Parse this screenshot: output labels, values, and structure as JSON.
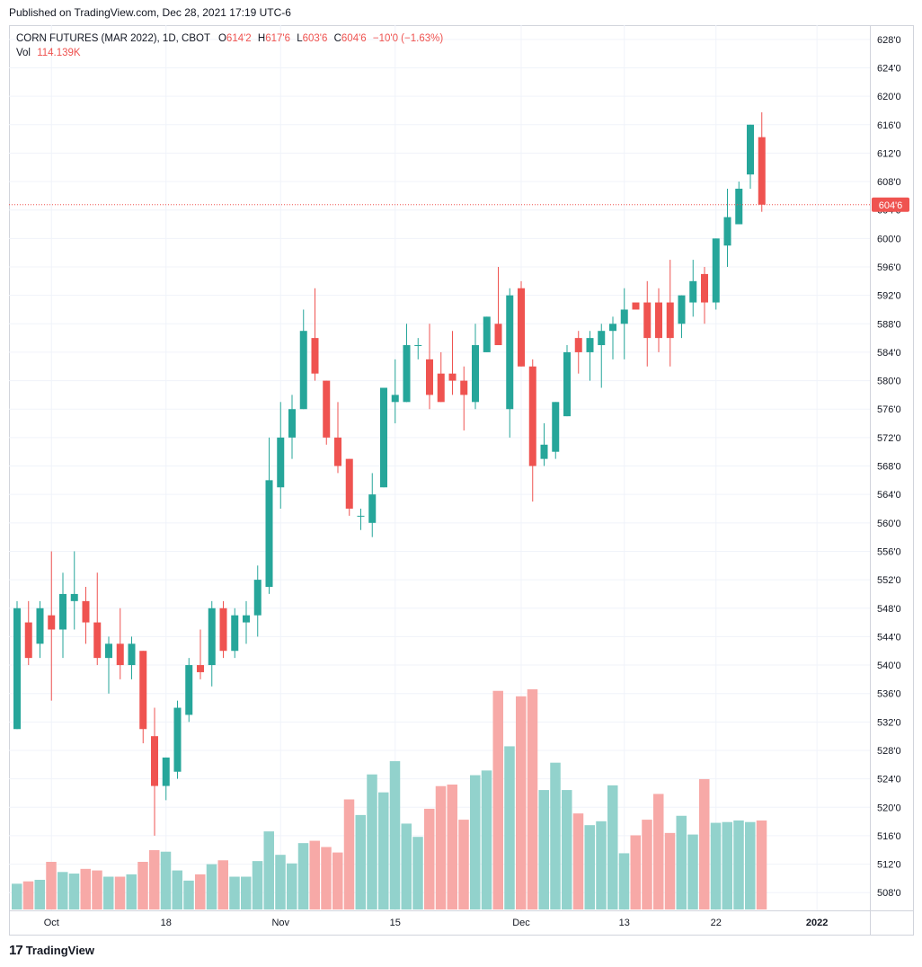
{
  "header": {
    "published": "Published on TradingView.com, Dec 28, 2021 17:19 UTC-6"
  },
  "legend": {
    "symbol": "CORN FUTURES (MAR 2022), 1D, CBOT",
    "o_label": "O",
    "o_value": "614'2",
    "h_label": "H",
    "h_value": "617'6",
    "l_label": "L",
    "l_value": "603'6",
    "c_label": "C",
    "c_value": "604'6",
    "change": "−10'0 (−1.63%)",
    "vol_label": "Vol",
    "vol_value": "114.139K"
  },
  "price_axis": {
    "ticks": [
      "628'0",
      "624'0",
      "620'0",
      "616'0",
      "612'0",
      "608'0",
      "604'0",
      "600'0",
      "596'0",
      "592'0",
      "588'0",
      "584'0",
      "580'0",
      "576'0",
      "572'0",
      "568'0",
      "564'0",
      "560'0",
      "556'0",
      "552'0",
      "548'0",
      "544'0",
      "540'0",
      "536'0",
      "532'0",
      "528'0",
      "524'0",
      "520'0",
      "516'0",
      "512'0",
      "508'0"
    ],
    "last_price_label": "604'6"
  },
  "time_axis": {
    "labels": [
      "Oct",
      "18",
      "Nov",
      "15",
      "Dec",
      "13",
      "22",
      "2022"
    ]
  },
  "footer": {
    "brand": "TradingView",
    "logo_glyph": "17"
  },
  "colors": {
    "up": "#26a69a",
    "down": "#ef5350",
    "up_volume": "#92d2cc",
    "down_volume": "#f7a9a7",
    "grid": "#f0f3fa",
    "text": "#131722"
  },
  "chart_data": {
    "type": "candlestick",
    "title": "CORN FUTURES (MAR 2022), 1D, CBOT",
    "price_range": [
      505.5,
      630
    ],
    "grid": true,
    "volume_unit": "relative",
    "candles": [
      {
        "d": "2021-09-29",
        "o": 531,
        "h": 549,
        "l": 531,
        "c": 548,
        "v": 33
      },
      {
        "d": "2021-09-30",
        "o": 546,
        "h": 549,
        "l": 540,
        "c": 541,
        "v": 36
      },
      {
        "d": "2021-10-01",
        "o": 543,
        "h": 549,
        "l": 541,
        "c": 548,
        "v": 38
      },
      {
        "d": "2021-10-04",
        "o": 547,
        "h": 556,
        "l": 535,
        "c": 545,
        "v": 61
      },
      {
        "d": "2021-10-05",
        "o": 545,
        "h": 553,
        "l": 541,
        "c": 550,
        "v": 48
      },
      {
        "d": "2021-10-06",
        "o": 549,
        "h": 556,
        "l": 545,
        "c": 550,
        "v": 46
      },
      {
        "d": "2021-10-07",
        "o": 549,
        "h": 551,
        "l": 543,
        "c": 546,
        "v": 52
      },
      {
        "d": "2021-10-08",
        "o": 546,
        "h": 553,
        "l": 540,
        "c": 541,
        "v": 50
      },
      {
        "d": "2021-10-11",
        "o": 541,
        "h": 544,
        "l": 536,
        "c": 543,
        "v": 42
      },
      {
        "d": "2021-10-12",
        "o": 543,
        "h": 548,
        "l": 538,
        "c": 540,
        "v": 42
      },
      {
        "d": "2021-10-13",
        "o": 540,
        "h": 544,
        "l": 538,
        "c": 543,
        "v": 45
      },
      {
        "d": "2021-10-14",
        "o": 542,
        "h": 542,
        "l": 529,
        "c": 531,
        "v": 61
      },
      {
        "d": "2021-10-15",
        "o": 530,
        "h": 534,
        "l": 516,
        "c": 523,
        "v": 76
      },
      {
        "d": "2021-10-18",
        "o": 523,
        "h": 527,
        "l": 521,
        "c": 527,
        "v": 74
      },
      {
        "d": "2021-10-19",
        "o": 525,
        "h": 535,
        "l": 524,
        "c": 534,
        "v": 50
      },
      {
        "d": "2021-10-20",
        "o": 533,
        "h": 541,
        "l": 532,
        "c": 540,
        "v": 37
      },
      {
        "d": "2021-10-21",
        "o": 540,
        "h": 545,
        "l": 538,
        "c": 539,
        "v": 45
      },
      {
        "d": "2021-10-22",
        "o": 540,
        "h": 549,
        "l": 537,
        "c": 548,
        "v": 58
      },
      {
        "d": "2021-10-25",
        "o": 548,
        "h": 549,
        "l": 541,
        "c": 542,
        "v": 63
      },
      {
        "d": "2021-10-26",
        "o": 542,
        "h": 548,
        "l": 541,
        "c": 547,
        "v": 42
      },
      {
        "d": "2021-10-27",
        "o": 546,
        "h": 549,
        "l": 543,
        "c": 547,
        "v": 42
      },
      {
        "d": "2021-10-28",
        "o": 547,
        "h": 554,
        "l": 544,
        "c": 552,
        "v": 62
      },
      {
        "d": "2021-10-29",
        "o": 551,
        "h": 572,
        "l": 550,
        "c": 566,
        "v": 100
      },
      {
        "d": "2021-11-01",
        "o": 565,
        "h": 577,
        "l": 562,
        "c": 572,
        "v": 70
      },
      {
        "d": "2021-11-02",
        "o": 572,
        "h": 578,
        "l": 569,
        "c": 576,
        "v": 59
      },
      {
        "d": "2021-11-03",
        "o": 576,
        "h": 590,
        "l": 576,
        "c": 587,
        "v": 85
      },
      {
        "d": "2021-11-04",
        "o": 586,
        "h": 593,
        "l": 580,
        "c": 581,
        "v": 88
      },
      {
        "d": "2021-11-05",
        "o": 580,
        "h": 580,
        "l": 571,
        "c": 572,
        "v": 80
      },
      {
        "d": "2021-11-08",
        "o": 572,
        "h": 577,
        "l": 567,
        "c": 568,
        "v": 73
      },
      {
        "d": "2021-11-09",
        "o": 569,
        "h": 569,
        "l": 561,
        "c": 562,
        "v": 141
      },
      {
        "d": "2021-11-10",
        "o": 561,
        "h": 562,
        "l": 559,
        "c": 561,
        "v": 121
      },
      {
        "d": "2021-11-11",
        "o": 560,
        "h": 567,
        "l": 558,
        "c": 564,
        "v": 173
      },
      {
        "d": "2021-11-12",
        "o": 565,
        "h": 579,
        "l": 565,
        "c": 579,
        "v": 150
      },
      {
        "d": "2021-11-15",
        "o": 577,
        "h": 583,
        "l": 574,
        "c": 578,
        "v": 190
      },
      {
        "d": "2021-11-16",
        "o": 577,
        "h": 588,
        "l": 577,
        "c": 585,
        "v": 110
      },
      {
        "d": "2021-11-17",
        "o": 585,
        "h": 586,
        "l": 583,
        "c": 585,
        "v": 93
      },
      {
        "d": "2021-11-18",
        "o": 583,
        "h": 588,
        "l": 576,
        "c": 578,
        "v": 129
      },
      {
        "d": "2021-11-19",
        "o": 581,
        "h": 584,
        "l": 577,
        "c": 577,
        "v": 158
      },
      {
        "d": "2021-11-22",
        "o": 581,
        "h": 587,
        "l": 578,
        "c": 580,
        "v": 160
      },
      {
        "d": "2021-11-23",
        "o": 580,
        "h": 582,
        "l": 573,
        "c": 578,
        "v": 115
      },
      {
        "d": "2021-11-24",
        "o": 577,
        "h": 588,
        "l": 576,
        "c": 585,
        "v": 172
      },
      {
        "d": "2021-11-26",
        "o": 584,
        "h": 589,
        "l": 584,
        "c": 589,
        "v": 178
      },
      {
        "d": "2021-11-29",
        "o": 588,
        "h": 596,
        "l": 585,
        "c": 585,
        "v": 280
      },
      {
        "d": "2021-11-30",
        "o": 576,
        "h": 593,
        "l": 572,
        "c": 592,
        "v": 209
      },
      {
        "d": "2021-12-01",
        "o": 593,
        "h": 594,
        "l": 582,
        "c": 582,
        "v": 273
      },
      {
        "d": "2021-12-02",
        "o": 582,
        "h": 583,
        "l": 563,
        "c": 568,
        "v": 282
      },
      {
        "d": "2021-12-03",
        "o": 569,
        "h": 574,
        "l": 568,
        "c": 571,
        "v": 153
      },
      {
        "d": "2021-12-06",
        "o": 570,
        "h": 577,
        "l": 569,
        "c": 577,
        "v": 188
      },
      {
        "d": "2021-12-07",
        "o": 575,
        "h": 585,
        "l": 575,
        "c": 584,
        "v": 153
      },
      {
        "d": "2021-12-08",
        "o": 586,
        "h": 587,
        "l": 581,
        "c": 584,
        "v": 123
      },
      {
        "d": "2021-12-09",
        "o": 584,
        "h": 587,
        "l": 580,
        "c": 586,
        "v": 108
      },
      {
        "d": "2021-12-10",
        "o": 585,
        "h": 588,
        "l": 579,
        "c": 587,
        "v": 113
      },
      {
        "d": "2021-12-13",
        "o": 587,
        "h": 589,
        "l": 583,
        "c": 588,
        "v": 159
      },
      {
        "d": "2021-12-14",
        "o": 588,
        "h": 593,
        "l": 583,
        "c": 590,
        "v": 72
      },
      {
        "d": "2021-12-15",
        "o": 591,
        "h": 591,
        "l": 591,
        "c": 590,
        "v": 95
      },
      {
        "d": "2021-12-16",
        "o": 591,
        "h": 594,
        "l": 582,
        "c": 586,
        "v": 115
      },
      {
        "d": "2021-12-17",
        "o": 591,
        "h": 593,
        "l": 584,
        "c": 586,
        "v": 148
      },
      {
        "d": "2021-12-20",
        "o": 591,
        "h": 597,
        "l": 582,
        "c": 586,
        "v": 98
      },
      {
        "d": "2021-12-21",
        "o": 588,
        "h": 592,
        "l": 586,
        "c": 592,
        "v": 120
      },
      {
        "d": "2021-12-22",
        "o": 591,
        "h": 597,
        "l": 589,
        "c": 594,
        "v": 96
      },
      {
        "d": "2021-12-23",
        "o": 595,
        "h": 596,
        "l": 588,
        "c": 591,
        "v": 167
      },
      {
        "d": "2021-12-24",
        "o": 591,
        "h": 600,
        "l": 590,
        "c": 600,
        "v": 111
      },
      {
        "d": "2021-12-27",
        "o": 599,
        "h": 607,
        "l": 596,
        "c": 603,
        "v": 112
      },
      {
        "d": "2021-12-28",
        "o": 602,
        "h": 608,
        "l": 602,
        "c": 607,
        "v": 114
      },
      {
        "d": "2021-12-29",
        "o": 609,
        "h": 616,
        "l": 607,
        "c": 616,
        "v": 112
      },
      {
        "d": "2021-12-30",
        "o": 614.25,
        "h": 617.75,
        "l": 603.75,
        "c": 604.75,
        "v": 114
      }
    ]
  }
}
